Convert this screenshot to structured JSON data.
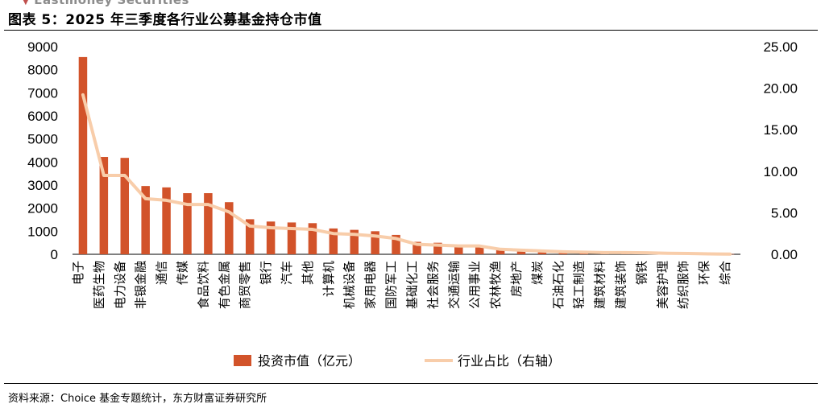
{
  "header": {
    "brand": "Eastmoney Securities",
    "title": "图表 5：2025 年三季度各行业公募基金持仓市值"
  },
  "footer": {
    "source": "资料来源：Choice 基金专题统计，东方财富证券研究所"
  },
  "colors": {
    "bar": "#d2532a",
    "line": "#f8cdaa",
    "brand_mark": "#c0504d"
  },
  "chart_data": {
    "type": "bar",
    "title": "图表 5：2025 年三季度各行业公募基金持仓市值",
    "categories": [
      "电子",
      "医药生物",
      "电力设备",
      "非银金融",
      "通信",
      "传媒",
      "食品饮料",
      "有色金属",
      "商贸零售",
      "银行",
      "汽车",
      "其他",
      "计算机",
      "机械设备",
      "家用电器",
      "国防军工",
      "基础化工",
      "社会服务",
      "交通运输",
      "公用事业",
      "农林牧渔",
      "房地产",
      "煤炭",
      "石油石化",
      "轻工制造",
      "建筑材料",
      "建筑装饰",
      "钢铁",
      "美容护理",
      "纺织服饰",
      "环保",
      "综合"
    ],
    "series": [
      {
        "name": "投资市值（亿元）",
        "type": "bar",
        "axis": "left",
        "values": [
          8550,
          4220,
          4180,
          2960,
          2900,
          2650,
          2650,
          2260,
          1520,
          1420,
          1380,
          1350,
          1120,
          1060,
          1000,
          840,
          540,
          500,
          330,
          320,
          260,
          220,
          170,
          130,
          110,
          95,
          85,
          80,
          55,
          45,
          30,
          10
        ]
      },
      {
        "name": "行业占比（右轴）",
        "type": "line",
        "axis": "right",
        "values": [
          19.2,
          9.5,
          9.5,
          6.7,
          6.5,
          6.0,
          6.0,
          5.1,
          3.4,
          3.2,
          3.1,
          3.0,
          2.5,
          2.4,
          2.2,
          1.9,
          1.2,
          1.1,
          1.0,
          1.0,
          0.6,
          0.5,
          0.4,
          0.3,
          0.25,
          0.2,
          0.2,
          0.18,
          0.12,
          0.1,
          0.05,
          0.02
        ]
      }
    ],
    "y_left": {
      "min": 0,
      "max": 9000,
      "ticks": [
        "0",
        "1000",
        "2000",
        "3000",
        "4000",
        "5000",
        "6000",
        "7000",
        "8000",
        "9000"
      ]
    },
    "y_right": {
      "min": 0,
      "max": 25,
      "ticks": [
        "0.00",
        "5.00",
        "10.00",
        "15.00",
        "20.00",
        "25.00"
      ]
    },
    "grid": false,
    "legend_position": "bottom"
  }
}
